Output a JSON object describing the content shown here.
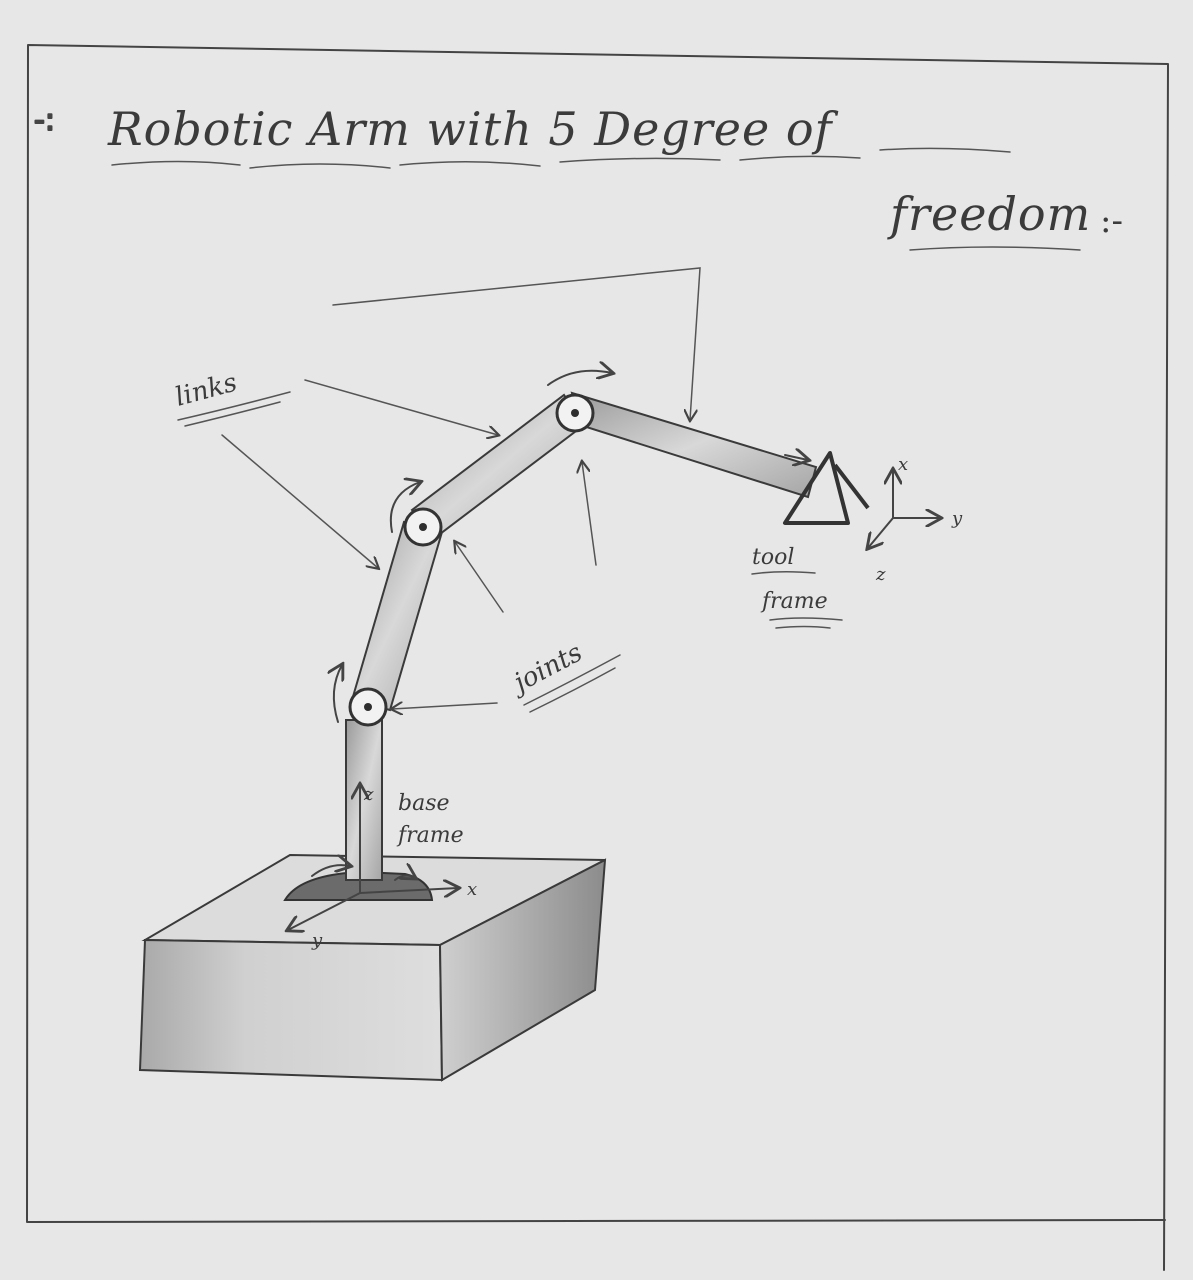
{
  "title": {
    "line1": "Robotic Arm with 5 Degree of",
    "line2": "freedom"
  },
  "labels": {
    "links": "links",
    "joints": "joints",
    "tool_frame_1": "tool",
    "tool_frame_2": "frame",
    "base_frame_1": "base",
    "base_frame_2": "frame"
  },
  "axes": {
    "base_x": "x",
    "base_y": "y",
    "base_z": "z",
    "tool_x": "x",
    "tool_y": "y",
    "tool_z": "z"
  },
  "colors": {
    "paper": "#e6e7e6",
    "pencil": "#3b3b3b"
  }
}
